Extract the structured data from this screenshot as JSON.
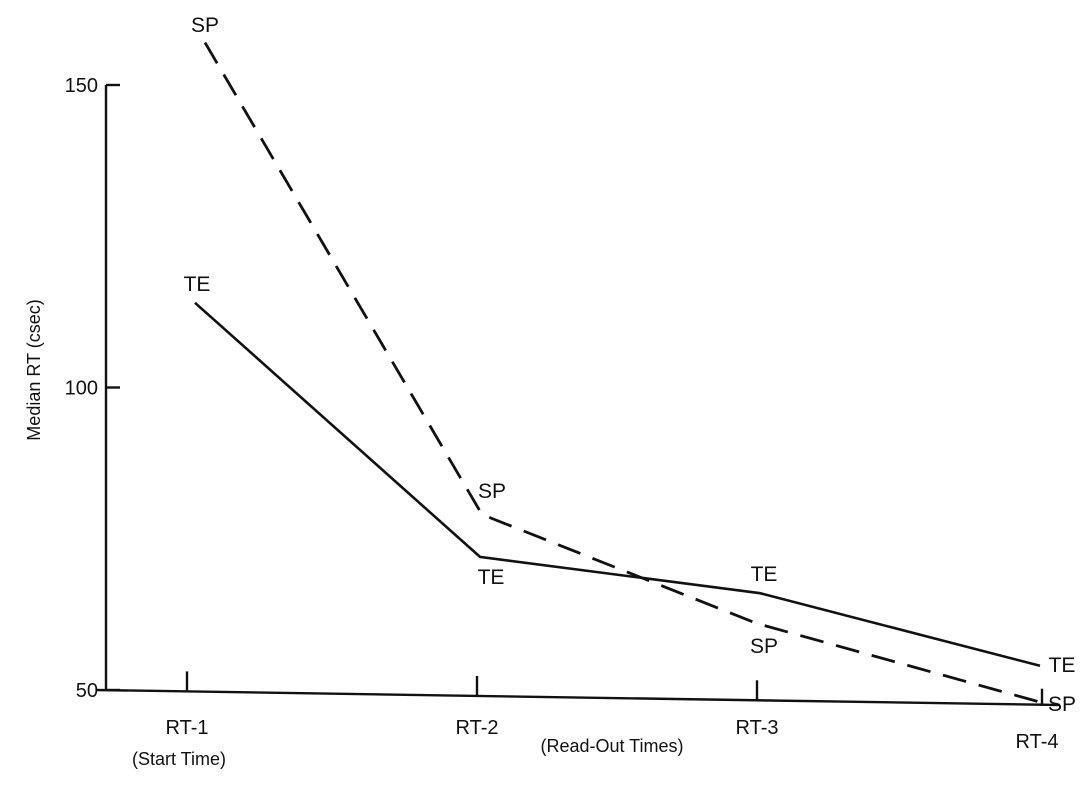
{
  "chart_data": {
    "type": "line",
    "categories": [
      "RT-1",
      "RT-2",
      "RT-3",
      "RT-4"
    ],
    "category_sublabels": [
      "(Start Time)",
      "",
      "",
      ""
    ],
    "xlabel": "(Read-Out Times)",
    "ylabel": "Median RT (csec)",
    "ylim": [
      50,
      160
    ],
    "yticks": [
      50,
      100,
      150
    ],
    "grid": false,
    "series": [
      {
        "name": "SP",
        "style": "dashed",
        "values": [
          157,
          79,
          61,
          48
        ]
      },
      {
        "name": "TE",
        "style": "solid",
        "values": [
          114,
          72,
          66,
          54
        ]
      }
    ]
  }
}
